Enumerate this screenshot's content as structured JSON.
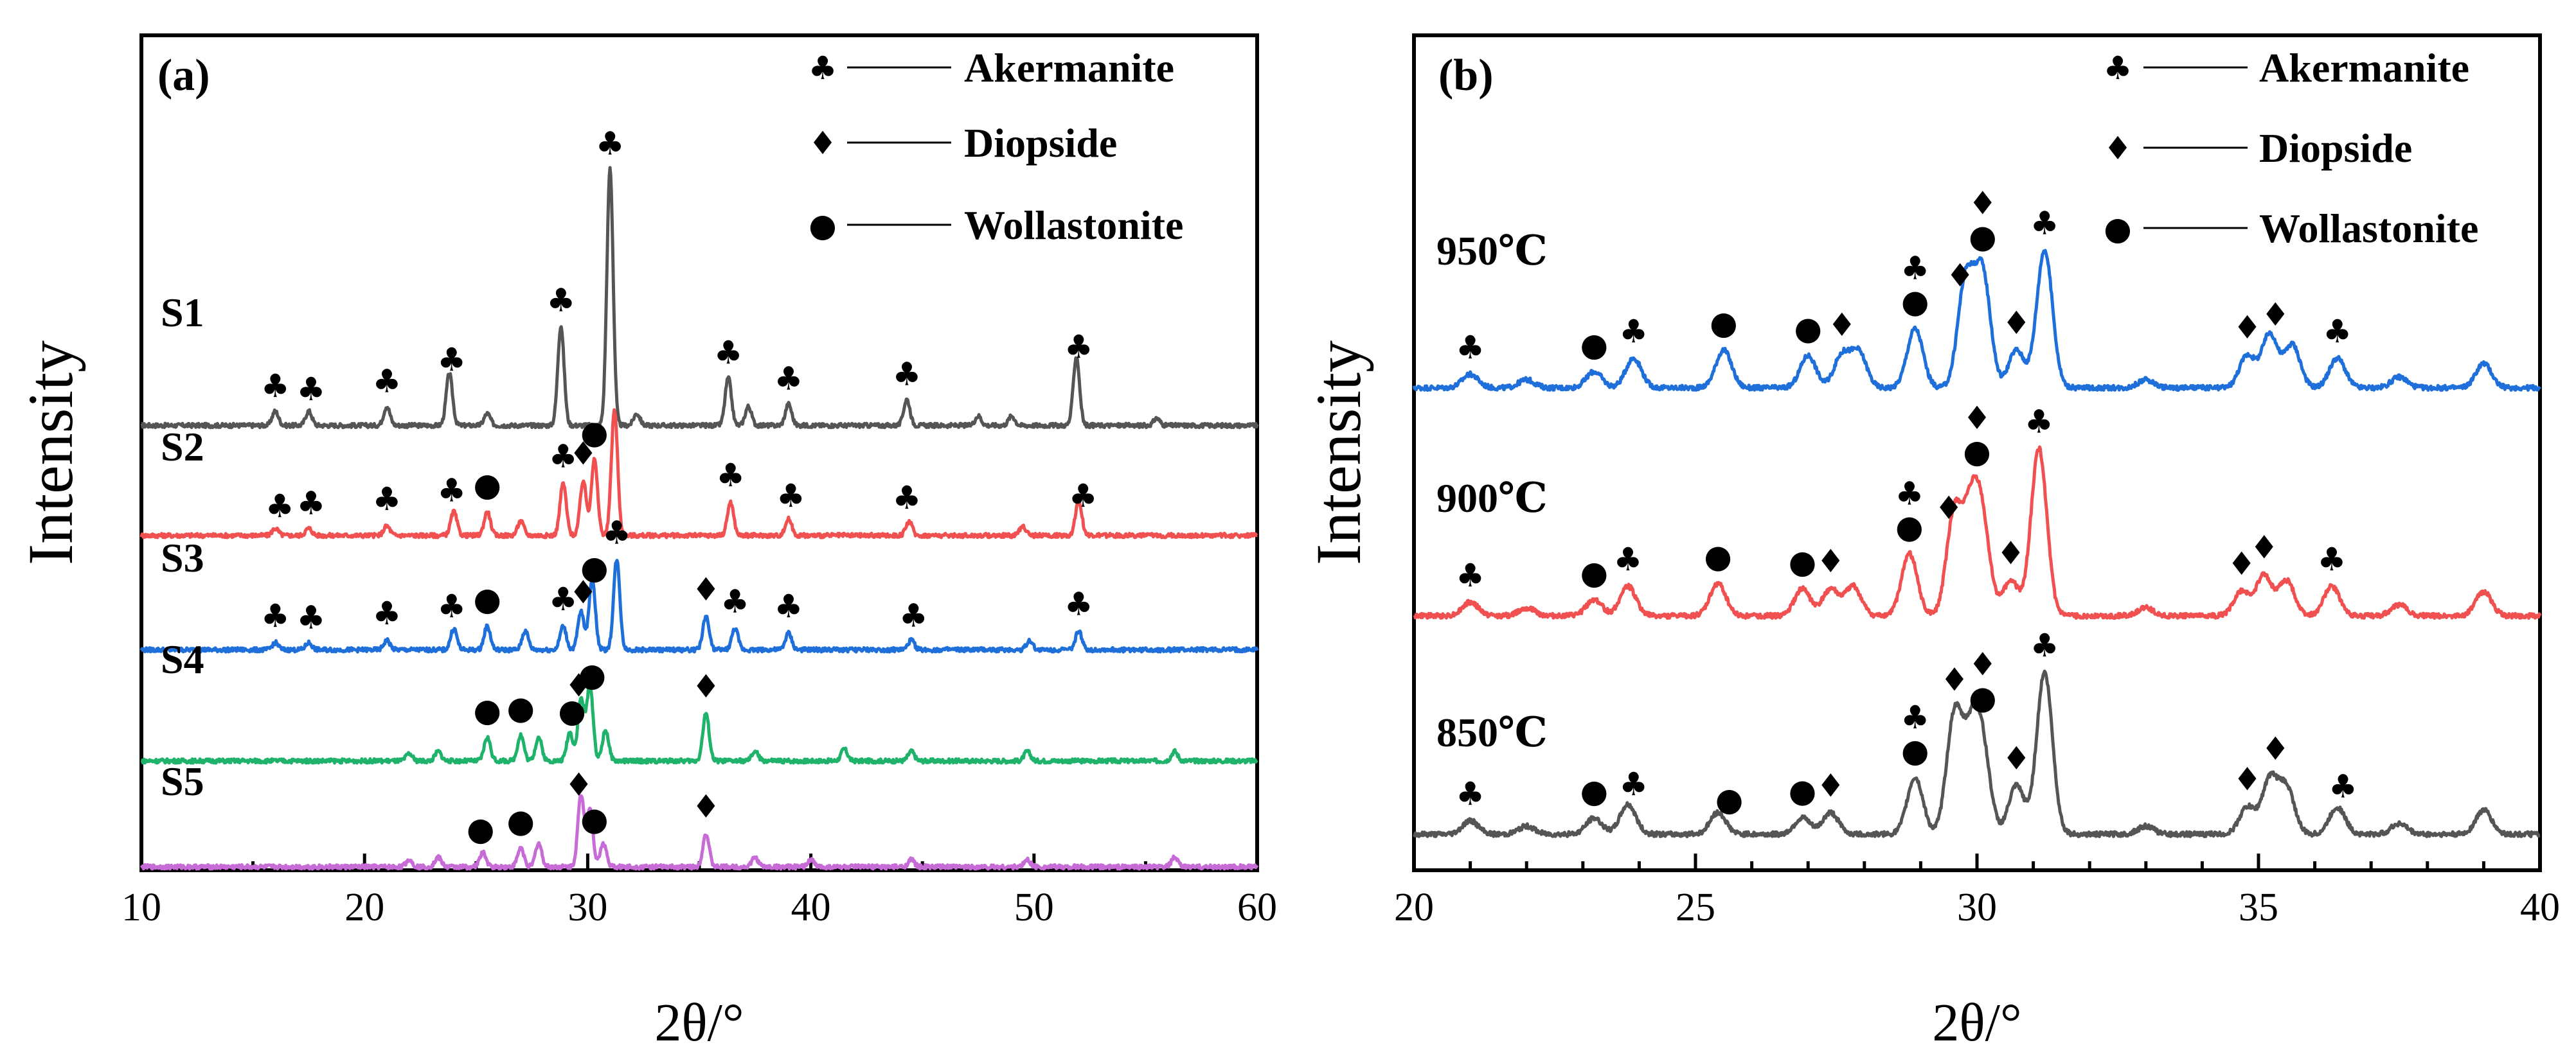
{
  "chart_data": [
    {
      "type": "line",
      "panel": "(a)",
      "xlabel": "2θ/°",
      "ylabel": "Intensity",
      "xlim": [
        10,
        60
      ],
      "xticks": [
        10,
        20,
        30,
        40,
        50,
        60
      ],
      "legend": [
        {
          "symbol": "♣",
          "label": "Akermanite"
        },
        {
          "symbol": "♦",
          "label": "Diopside"
        },
        {
          "symbol": "●",
          "label": "Wollastonite"
        }
      ],
      "series": [
        {
          "name": "S1",
          "color": "#555555",
          "baseline": 0.6,
          "peaks": [
            [
              16.0,
              0.6
            ],
            [
              17.5,
              0.6
            ],
            [
              21.0,
              0.8
            ],
            [
              23.8,
              2.2
            ],
            [
              25.5,
              0.5
            ],
            [
              28.8,
              4.2
            ],
            [
              31.0,
              10.8
            ],
            [
              32.2,
              0.5
            ],
            [
              36.3,
              2.0
            ],
            [
              37.2,
              0.8
            ],
            [
              39.0,
              0.9
            ],
            [
              44.3,
              1.1
            ],
            [
              47.5,
              0.4
            ],
            [
              49.0,
              0.4
            ],
            [
              51.9,
              2.9
            ],
            [
              55.5,
              0.3
            ]
          ],
          "markers": [
            [
              16.0,
              "♣"
            ],
            [
              17.6,
              "♣"
            ],
            [
              21.0,
              "♣"
            ],
            [
              23.9,
              "♣"
            ],
            [
              28.8,
              "♣"
            ],
            [
              31.0,
              "♣"
            ],
            [
              36.3,
              "♣"
            ],
            [
              39.0,
              "♣"
            ],
            [
              44.3,
              "♣"
            ],
            [
              52.0,
              "♣"
            ]
          ]
        },
        {
          "name": "S2",
          "color": "#f05050",
          "baseline": 0.35,
          "peaks": [
            [
              16.0,
              0.3
            ],
            [
              17.5,
              0.3
            ],
            [
              21.0,
              0.4
            ],
            [
              24.0,
              1.0
            ],
            [
              25.5,
              1.0
            ],
            [
              27.0,
              0.6
            ],
            [
              28.9,
              2.2
            ],
            [
              29.8,
              2.3
            ],
            [
              30.3,
              3.2
            ],
            [
              31.2,
              5.3
            ],
            [
              36.4,
              1.4
            ],
            [
              39.0,
              0.7
            ],
            [
              44.4,
              0.6
            ],
            [
              49.5,
              0.4
            ],
            [
              52.0,
              1.5
            ]
          ],
          "markers": [
            [
              16.2,
              "♣"
            ],
            [
              17.6,
              "♣"
            ],
            [
              21.0,
              "♣"
            ],
            [
              23.9,
              "♣"
            ],
            [
              25.5,
              "●"
            ],
            [
              28.9,
              "♣"
            ],
            [
              29.8,
              "♦"
            ],
            [
              30.3,
              "●"
            ],
            [
              36.4,
              "♣"
            ],
            [
              39.1,
              "♣"
            ],
            [
              44.3,
              "♣"
            ],
            [
              52.2,
              "♣"
            ]
          ]
        },
        {
          "name": "S3",
          "color": "#1e6fd9",
          "baseline": 0.35,
          "peaks": [
            [
              16.0,
              0.3
            ],
            [
              17.5,
              0.3
            ],
            [
              21.0,
              0.4
            ],
            [
              24.0,
              0.9
            ],
            [
              25.5,
              1.0
            ],
            [
              27.2,
              0.8
            ],
            [
              28.9,
              1.0
            ],
            [
              29.7,
              1.6
            ],
            [
              30.2,
              3.0
            ],
            [
              31.3,
              3.8
            ],
            [
              35.3,
              1.4
            ],
            [
              36.6,
              0.9
            ],
            [
              39.0,
              0.7
            ],
            [
              44.5,
              0.4
            ],
            [
              49.8,
              0.4
            ],
            [
              52.0,
              0.8
            ]
          ],
          "markers": [
            [
              16.0,
              "♣"
            ],
            [
              17.6,
              "♣"
            ],
            [
              21.0,
              "♣"
            ],
            [
              23.9,
              "♣"
            ],
            [
              25.5,
              "●"
            ],
            [
              28.9,
              "♣"
            ],
            [
              29.8,
              "♦"
            ],
            [
              30.3,
              "●"
            ],
            [
              31.3,
              "♣"
            ],
            [
              35.3,
              "♦"
            ],
            [
              36.6,
              "♣"
            ],
            [
              39.0,
              "♣"
            ],
            [
              44.6,
              "♣"
            ],
            [
              52.0,
              "♣"
            ]
          ]
        },
        {
          "name": "S4",
          "color": "#1fb26b",
          "baseline": 0.35,
          "peaks": [
            [
              22.0,
              0.3
            ],
            [
              23.3,
              0.4
            ],
            [
              25.5,
              1.0
            ],
            [
              27.0,
              1.1
            ],
            [
              27.8,
              1.0
            ],
            [
              29.2,
              1.2
            ],
            [
              29.7,
              2.6
            ],
            [
              30.1,
              3.2
            ],
            [
              30.8,
              1.3
            ],
            [
              35.3,
              2.0
            ],
            [
              37.5,
              0.4
            ],
            [
              41.5,
              0.5
            ],
            [
              44.5,
              0.4
            ],
            [
              49.7,
              0.4
            ],
            [
              56.3,
              0.4
            ]
          ],
          "markers": [
            [
              25.5,
              "●"
            ],
            [
              27.0,
              "●"
            ],
            [
              29.3,
              "●"
            ],
            [
              29.6,
              "♦"
            ],
            [
              30.2,
              "●"
            ],
            [
              35.3,
              "♦"
            ]
          ]
        },
        {
          "name": "S5",
          "color": "#c76bd6",
          "baseline": 0.35,
          "peaks": [
            [
              22.0,
              0.3
            ],
            [
              23.3,
              0.4
            ],
            [
              25.3,
              0.6
            ],
            [
              27.0,
              0.8
            ],
            [
              27.8,
              1.0
            ],
            [
              29.7,
              3.0
            ],
            [
              30.1,
              2.4
            ],
            [
              30.7,
              1.0
            ],
            [
              35.3,
              1.4
            ],
            [
              37.5,
              0.4
            ],
            [
              40.0,
              0.3
            ],
            [
              44.5,
              0.3
            ],
            [
              49.7,
              0.3
            ],
            [
              56.3,
              0.4
            ]
          ],
          "markers": [
            [
              25.2,
              "●"
            ],
            [
              27.0,
              "●"
            ],
            [
              29.6,
              "♦"
            ],
            [
              30.3,
              "●"
            ],
            [
              35.3,
              "♦"
            ]
          ]
        }
      ]
    },
    {
      "type": "line",
      "panel": "(b)",
      "xlabel": "2θ/°",
      "ylabel": "Intensity",
      "xlim": [
        20,
        40
      ],
      "xticks": [
        20,
        25,
        30,
        35,
        40
      ],
      "legend": [
        {
          "symbol": "♣",
          "label": "Akermanite"
        },
        {
          "symbol": "♦",
          "label": "Diopside"
        },
        {
          "symbol": "●",
          "label": "Wollastonite"
        }
      ],
      "series": [
        {
          "name": "950℃",
          "color": "#1e6fd9",
          "baseline": 0.3,
          "peaks": [
            [
              21.0,
              0.5
            ],
            [
              22.0,
              0.3
            ],
            [
              23.2,
              0.6
            ],
            [
              23.9,
              1.1
            ],
            [
              25.5,
              1.4
            ],
            [
              27.0,
              1.2
            ],
            [
              27.6,
              1.2
            ],
            [
              27.9,
              1.3
            ],
            [
              28.9,
              2.2
            ],
            [
              29.8,
              4.0
            ],
            [
              30.1,
              4.2
            ],
            [
              30.7,
              1.4
            ],
            [
              31.2,
              5.1
            ],
            [
              33.0,
              0.3
            ],
            [
              34.8,
              1.2
            ],
            [
              35.2,
              2.0
            ],
            [
              35.6,
              1.6
            ],
            [
              36.4,
              1.1
            ],
            [
              37.5,
              0.4
            ],
            [
              39.0,
              0.9
            ]
          ],
          "markers": [
            [
              21.0,
              "♣"
            ],
            [
              23.2,
              "●"
            ],
            [
              23.9,
              "♣"
            ],
            [
              25.5,
              "●"
            ],
            [
              27.0,
              "●"
            ],
            [
              27.6,
              "♦"
            ],
            [
              28.9,
              "●"
            ],
            [
              28.9,
              "♣"
            ],
            [
              29.7,
              "♦"
            ],
            [
              30.1,
              "●"
            ],
            [
              30.1,
              "♦"
            ],
            [
              30.7,
              "♦"
            ],
            [
              31.2,
              "♣"
            ],
            [
              34.8,
              "♦"
            ],
            [
              35.3,
              "♦"
            ],
            [
              36.4,
              "♣"
            ]
          ]
        },
        {
          "name": "900℃",
          "color": "#f05050",
          "baseline": 0.3,
          "peaks": [
            [
              21.0,
              0.5
            ],
            [
              22.0,
              0.3
            ],
            [
              23.2,
              0.6
            ],
            [
              23.8,
              1.1
            ],
            [
              25.4,
              1.2
            ],
            [
              26.9,
              1.0
            ],
            [
              27.4,
              1.0
            ],
            [
              27.8,
              1.1
            ],
            [
              28.8,
              2.3
            ],
            [
              29.6,
              3.8
            ],
            [
              29.9,
              3.5
            ],
            [
              30.1,
              3.0
            ],
            [
              30.6,
              1.3
            ],
            [
              31.1,
              6.2
            ],
            [
              33.0,
              0.3
            ],
            [
              34.7,
              0.9
            ],
            [
              35.1,
              1.5
            ],
            [
              35.5,
              1.3
            ],
            [
              36.3,
              1.1
            ],
            [
              37.5,
              0.4
            ],
            [
              39.0,
              0.9
            ]
          ],
          "markers": [
            [
              21.0,
              "♣"
            ],
            [
              23.2,
              "●"
            ],
            [
              23.8,
              "♣"
            ],
            [
              25.4,
              "●"
            ],
            [
              26.9,
              "●"
            ],
            [
              27.4,
              "♦"
            ],
            [
              28.8,
              "●"
            ],
            [
              28.8,
              "♣"
            ],
            [
              29.5,
              "♦"
            ],
            [
              30.0,
              "●"
            ],
            [
              30.0,
              "♦"
            ],
            [
              30.6,
              "♦"
            ],
            [
              31.1,
              "♣"
            ],
            [
              34.7,
              "♦"
            ],
            [
              35.1,
              "♦"
            ],
            [
              36.3,
              "♣"
            ]
          ]
        },
        {
          "name": "850℃",
          "color": "#555555",
          "baseline": 0.3,
          "peaks": [
            [
              21.0,
              0.5
            ],
            [
              22.0,
              0.3
            ],
            [
              23.2,
              0.6
            ],
            [
              23.8,
              1.1
            ],
            [
              25.4,
              0.8
            ],
            [
              26.9,
              0.6
            ],
            [
              27.4,
              0.8
            ],
            [
              28.9,
              2.1
            ],
            [
              29.6,
              4.4
            ],
            [
              29.9,
              3.2
            ],
            [
              30.1,
              2.9
            ],
            [
              30.7,
              1.8
            ],
            [
              31.2,
              6.0
            ],
            [
              33.0,
              0.3
            ],
            [
              34.8,
              1.0
            ],
            [
              35.2,
              2.0
            ],
            [
              35.5,
              1.7
            ],
            [
              36.4,
              1.0
            ],
            [
              37.5,
              0.4
            ],
            [
              39.0,
              0.9
            ]
          ],
          "markers": [
            [
              21.0,
              "♣"
            ],
            [
              23.2,
              "●"
            ],
            [
              23.9,
              "♣"
            ],
            [
              25.6,
              "●"
            ],
            [
              26.9,
              "●"
            ],
            [
              27.4,
              "♦"
            ],
            [
              28.9,
              "●"
            ],
            [
              28.9,
              "♣"
            ],
            [
              29.6,
              "♦"
            ],
            [
              30.1,
              "●"
            ],
            [
              30.1,
              "♦"
            ],
            [
              30.7,
              "♦"
            ],
            [
              31.2,
              "♣"
            ],
            [
              34.8,
              "♦"
            ],
            [
              35.3,
              "♦"
            ],
            [
              36.5,
              "♣"
            ]
          ]
        }
      ]
    }
  ]
}
